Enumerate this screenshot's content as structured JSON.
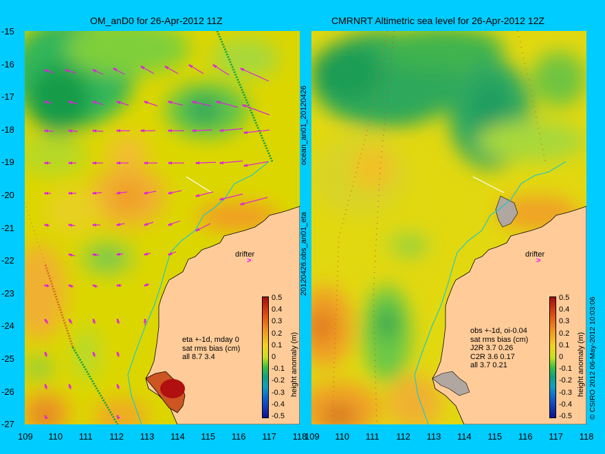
{
  "left_panel": {
    "title": "OM_anD0 for 26-Apr-2012 11Z",
    "stats": [
      "eta +-1d, mday 0",
      "sat rms bias (cm)",
      "all 8.7 3.4"
    ],
    "drifter_label": "drifter"
  },
  "right_panel": {
    "title": "CMRNRT Altimetric sea level  for 26-Apr-2012 12Z",
    "stats": [
      "obs +-1d, oi-0.04",
      "sat rms bias (cm)",
      "J2R   3.7 0.26",
      "C2R   3.6 0.17",
      "all 3.7 0.21"
    ],
    "drifter_label": "drifter"
  },
  "axes": {
    "lat_ticks": [
      "-15",
      "-16",
      "-17",
      "-18",
      "-19",
      "-20",
      "-21",
      "-22",
      "-23",
      "-24",
      "-25",
      "-26",
      "-27"
    ],
    "lon_ticks": [
      "109",
      "110",
      "111",
      "112",
      "113",
      "114",
      "115",
      "116",
      "117",
      "118"
    ]
  },
  "colorbar": {
    "ticks": [
      "0.5",
      "0.4",
      "0.3",
      "0.2",
      "0.1",
      "0",
      "-0.1",
      "-0.2",
      "-0.3",
      "-0.4",
      "-0.5"
    ],
    "label": "height anomaly (m)"
  },
  "side_labels": {
    "middle_top": "ocean_an01_20120426",
    "middle_bottom": "20120426.obs_an01_eta",
    "right": "© CSIRO 2012   06-May-2012 10:03:06"
  }
}
